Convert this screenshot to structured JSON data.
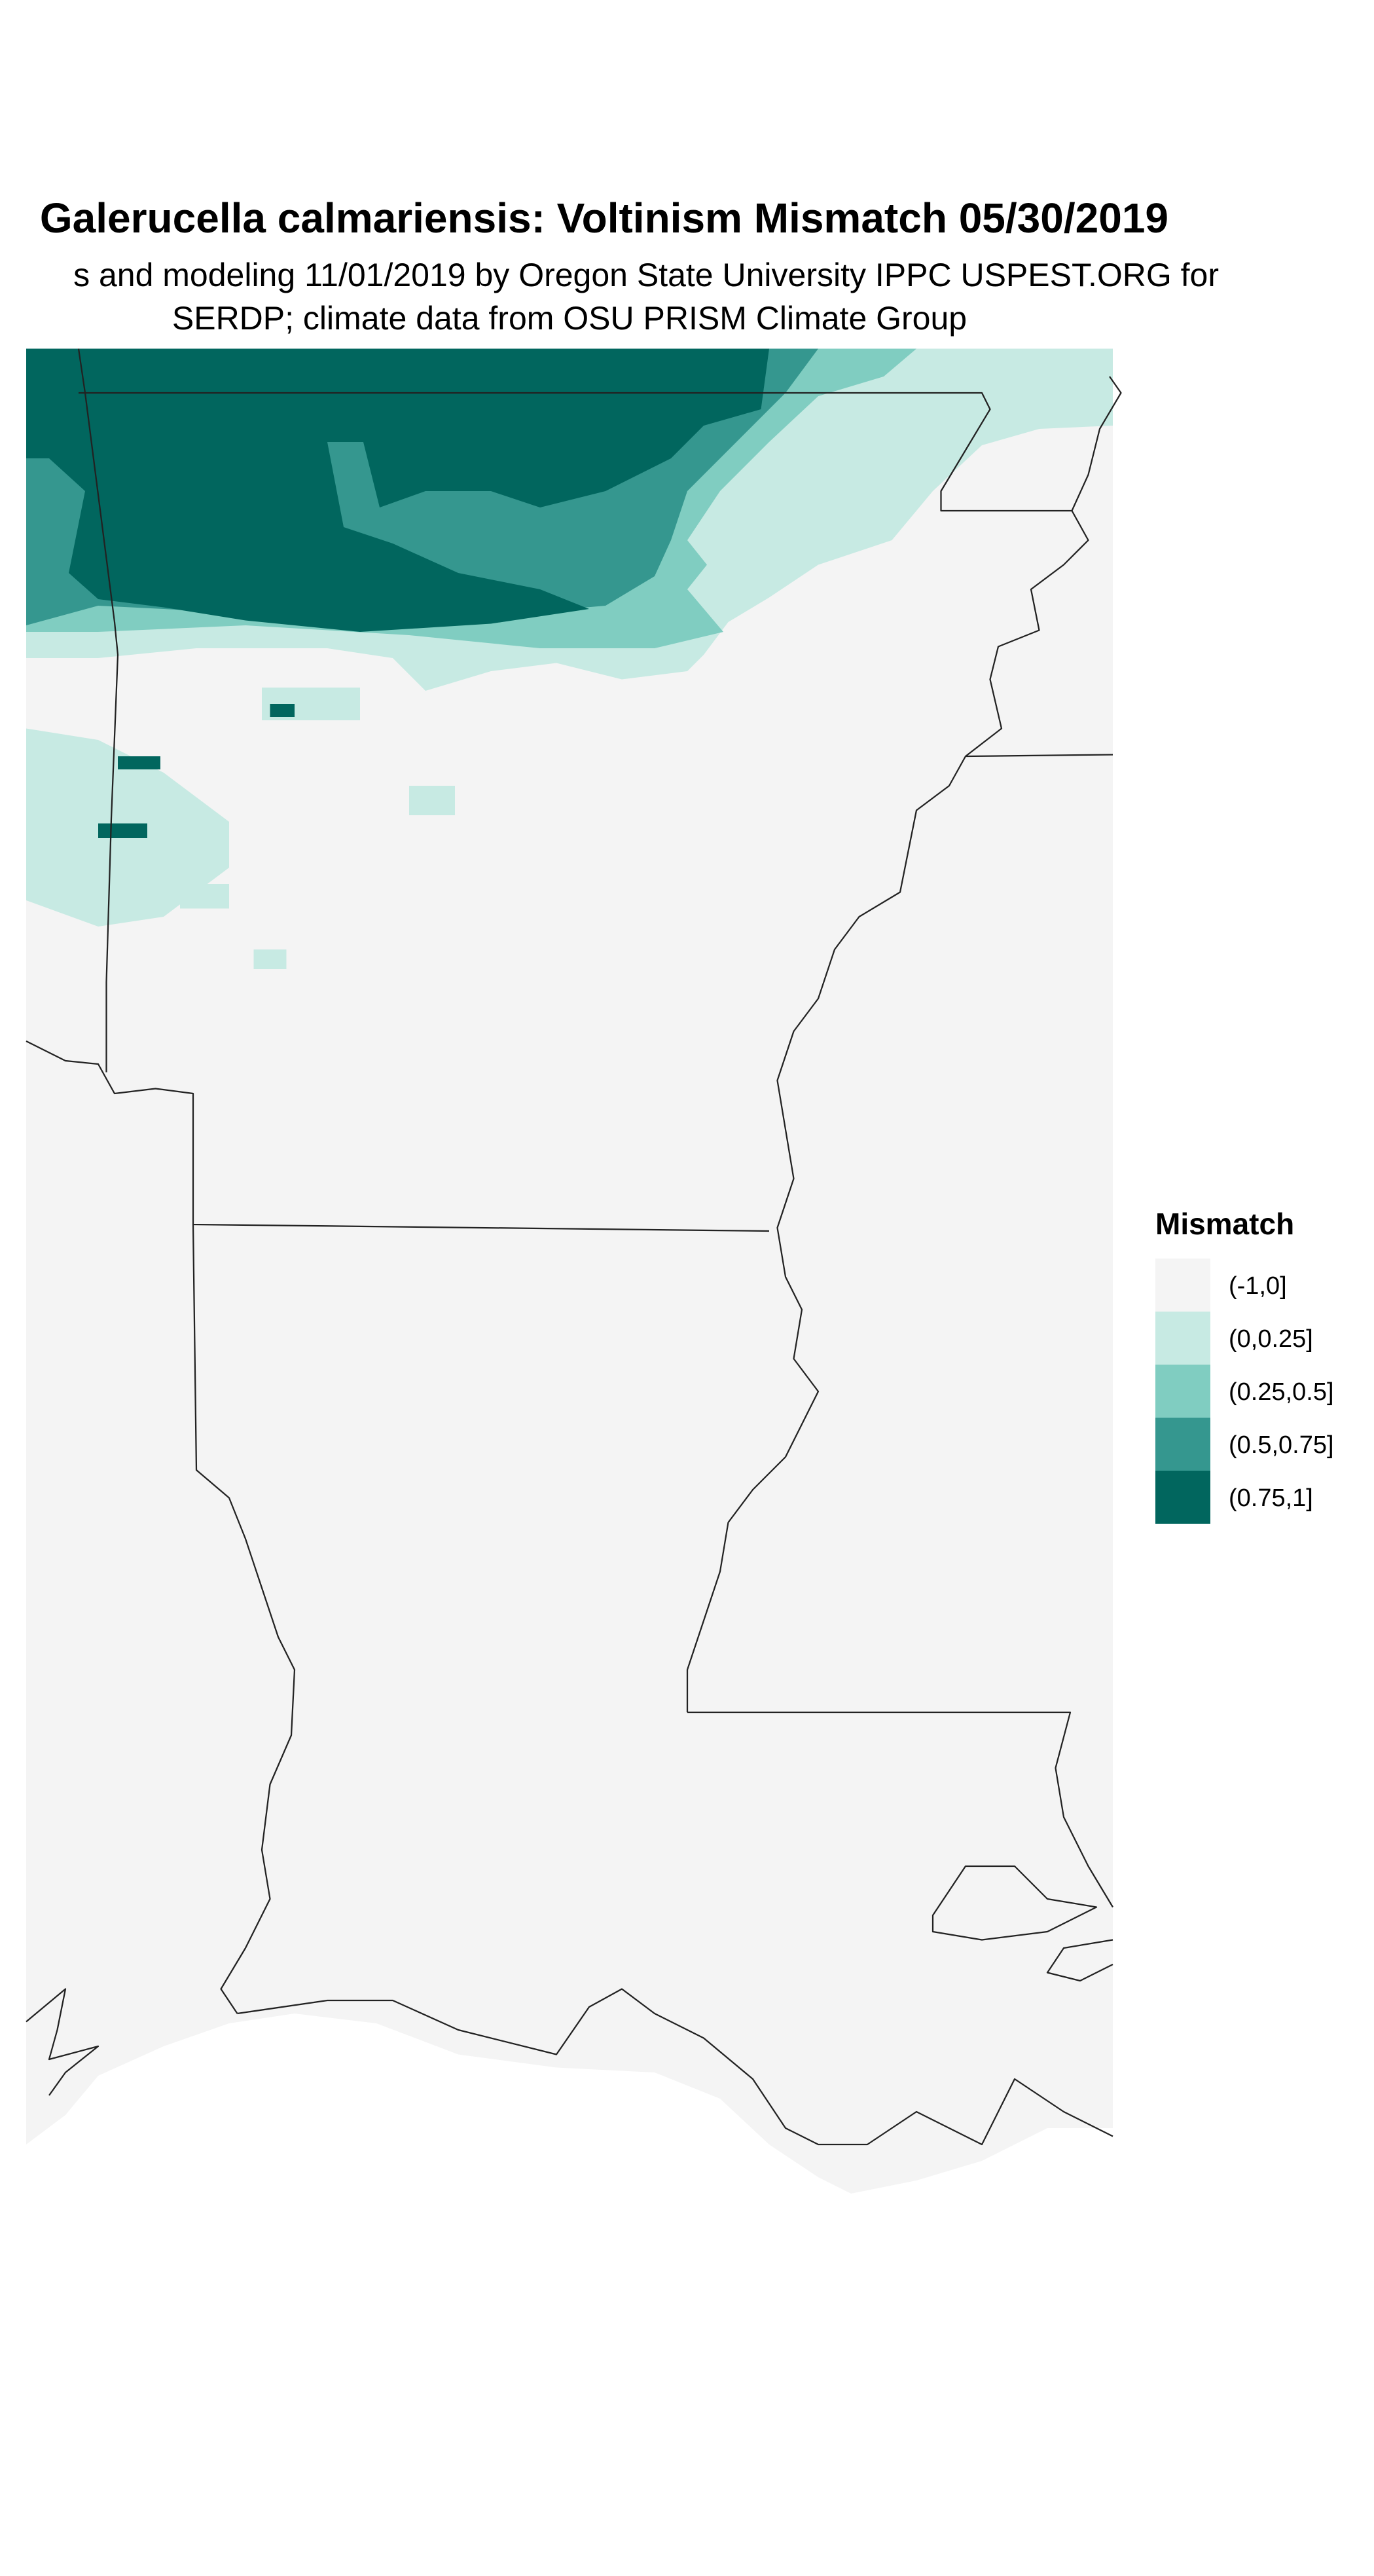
{
  "title": "Galerucella calmariensis: Voltinism Mismatch 05/30/2019",
  "subtitle_line1": "s and modeling 11/01/2019 by Oregon State University IPPC USPEST.ORG for",
  "subtitle_line2": "SERDP; climate data from OSU PRISM Climate Group",
  "legend": {
    "title": "Mismatch",
    "items": [
      {
        "label": "(-1,0]",
        "color": "#f4f4f4"
      },
      {
        "label": "(0,0.25]",
        "color": "#c7eae3"
      },
      {
        "label": "(0.25,0.5]",
        "color": "#80cdc1"
      },
      {
        "label": "(0.5,0.75]",
        "color": "#35978f"
      },
      {
        "label": "(0.75,1]",
        "color": "#01665e"
      }
    ]
  },
  "map": {
    "colors": {
      "background": "#f4f4f4",
      "border": "#222222"
    }
  }
}
